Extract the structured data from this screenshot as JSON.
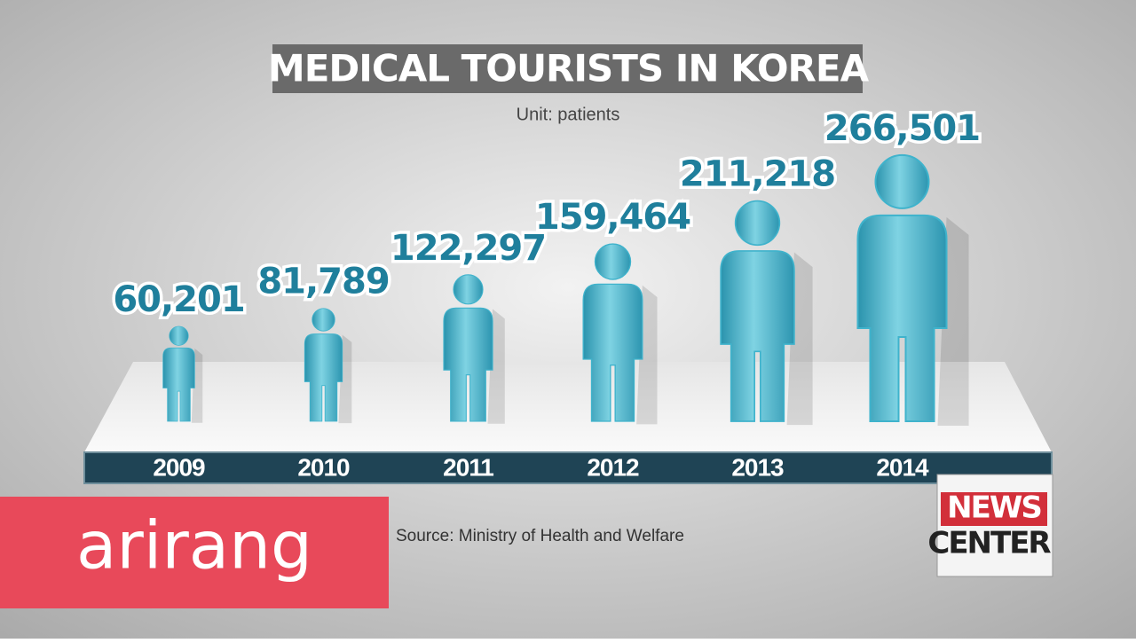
{
  "chart_data": {
    "type": "pictograph",
    "title": "MEDICAL TOURISTS IN KOREA",
    "subtitle": "Unit: patients",
    "categories": [
      "2009",
      "2010",
      "2011",
      "2012",
      "2013",
      "2014"
    ],
    "values": [
      60201,
      81789,
      122297,
      159464,
      211218,
      266501
    ],
    "value_labels": [
      "60,201",
      "81,789",
      "122,297",
      "159,464",
      "211,218",
      "266,501"
    ],
    "color": "#3fb3cc",
    "source": "Source: Ministry of Health and Welfare"
  },
  "branding": {
    "logo": "arirang",
    "badge_top": "NEWS",
    "badge_bottom": "CENTER"
  }
}
